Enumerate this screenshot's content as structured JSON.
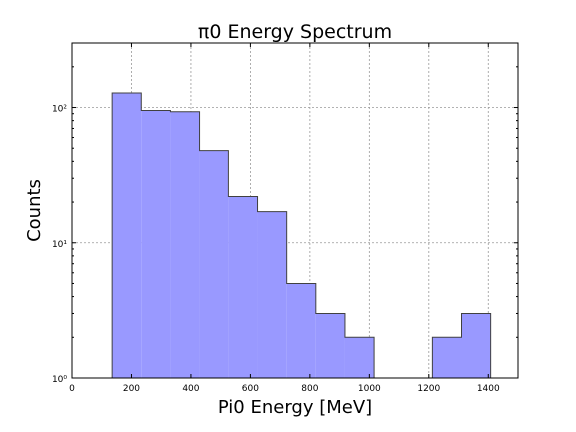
{
  "chart_data": {
    "type": "bar",
    "subtype": "histogram-step",
    "title": "π0 Energy Spectrum",
    "xlabel": "Pi0 Energy [MeV]",
    "ylabel": "Counts",
    "xlim": [
      0,
      1500
    ],
    "ylim": [
      1,
      300
    ],
    "yscale": "log",
    "grid": true,
    "x_ticks": [
      0,
      200,
      400,
      600,
      800,
      1000,
      1200,
      1400
    ],
    "x_tick_labels": [
      "0",
      "200",
      "400",
      "600",
      "800",
      "1000",
      "1200",
      "1400"
    ],
    "y_ticks": [
      1,
      10,
      100
    ],
    "y_tick_labels": [
      "10⁰",
      "10¹",
      "10²"
    ],
    "bin_edges": [
      135,
      233,
      331,
      429,
      526,
      624,
      722,
      820,
      918,
      1016,
      1114,
      1212,
      1310,
      1408
    ],
    "counts": [
      128,
      95,
      93,
      48,
      22,
      17,
      5,
      3,
      2,
      0,
      0,
      2,
      3
    ],
    "color": "#9999ff"
  }
}
